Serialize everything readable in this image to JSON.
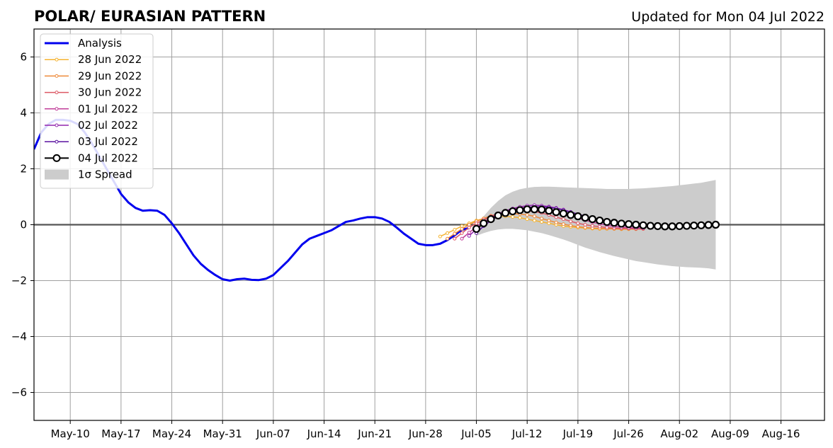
{
  "header": {
    "title": "POLAR/ EURASIAN  PATTERN",
    "updated": "Updated for Mon 04 Jul 2022"
  },
  "chart_data": {
    "type": "line",
    "x_axis": {
      "ticks": [
        "2022-05-10",
        "2022-05-17",
        "2022-05-24",
        "2022-05-31",
        "2022-06-07",
        "2022-06-14",
        "2022-06-21",
        "2022-06-28",
        "2022-07-05",
        "2022-07-12",
        "2022-07-19",
        "2022-07-26",
        "2022-08-02",
        "2022-08-09",
        "2022-08-16"
      ],
      "tick_labels": [
        "May-10",
        "May-17",
        "May-24",
        "May-31",
        "Jun-07",
        "Jun-14",
        "Jun-21",
        "Jun-28",
        "Jul-05",
        "Jul-12",
        "Jul-19",
        "Jul-26",
        "Aug-02",
        "Aug-09",
        "Aug-16"
      ],
      "range": [
        "2022-05-05",
        "2022-08-22"
      ]
    },
    "y_axis": {
      "ticks": [
        -6,
        -4,
        -2,
        0,
        2,
        4,
        6
      ],
      "tick_labels": [
        "−6",
        "−4",
        "−2",
        "0",
        "2",
        "4",
        "6"
      ],
      "ylim": [
        -7,
        7
      ]
    },
    "grid": true,
    "legend_position": "top-left",
    "zero_line": true,
    "analysis": {
      "name": "Analysis",
      "color": "#0000ee",
      "x": [
        "2022-05-05",
        "2022-05-06",
        "2022-05-07",
        "2022-05-08",
        "2022-05-09",
        "2022-05-10",
        "2022-05-11",
        "2022-05-12",
        "2022-05-13",
        "2022-05-14",
        "2022-05-15",
        "2022-05-16",
        "2022-05-17",
        "2022-05-18",
        "2022-05-19",
        "2022-05-20",
        "2022-05-21",
        "2022-05-22",
        "2022-05-23",
        "2022-05-24",
        "2022-05-25",
        "2022-05-26",
        "2022-05-27",
        "2022-05-28",
        "2022-05-29",
        "2022-05-30",
        "2022-05-31",
        "2022-06-01",
        "2022-06-02",
        "2022-06-03",
        "2022-06-04",
        "2022-06-05",
        "2022-06-06",
        "2022-06-07",
        "2022-06-08",
        "2022-06-09",
        "2022-06-10",
        "2022-06-11",
        "2022-06-12",
        "2022-06-13",
        "2022-06-14",
        "2022-06-15",
        "2022-06-16",
        "2022-06-17",
        "2022-06-18",
        "2022-06-19",
        "2022-06-20",
        "2022-06-21",
        "2022-06-22",
        "2022-06-23",
        "2022-06-24",
        "2022-06-25",
        "2022-06-26",
        "2022-06-27",
        "2022-06-28",
        "2022-06-29",
        "2022-06-30",
        "2022-07-01",
        "2022-07-02",
        "2022-07-03",
        "2022-07-04"
      ],
      "y": [
        2.7,
        3.3,
        3.6,
        3.75,
        3.75,
        3.72,
        3.6,
        3.3,
        2.9,
        2.45,
        2.0,
        1.55,
        1.1,
        0.8,
        0.6,
        0.5,
        0.52,
        0.5,
        0.35,
        0.05,
        -0.3,
        -0.7,
        -1.1,
        -1.4,
        -1.62,
        -1.8,
        -1.95,
        -2.0,
        -1.95,
        -1.93,
        -1.97,
        -1.98,
        -1.93,
        -1.8,
        -1.55,
        -1.3,
        -1.0,
        -0.7,
        -0.5,
        -0.4,
        -0.3,
        -0.2,
        -0.05,
        0.1,
        0.15,
        0.22,
        0.27,
        0.27,
        0.22,
        0.1,
        -0.1,
        -0.32,
        -0.5,
        -0.68,
        -0.73,
        -0.73,
        -0.68,
        -0.55,
        -0.38,
        -0.18,
        -0.12
      ]
    },
    "forecasts": [
      {
        "name": "28 Jun 2022",
        "color": "#f5b330",
        "start": "2022-06-30",
        "y": [
          -0.42,
          -0.3,
          -0.18,
          -0.05,
          0.05,
          0.15,
          0.22,
          0.28,
          0.3,
          0.3,
          0.28,
          0.25,
          0.2,
          0.15,
          0.1,
          0.05,
          0.0,
          -0.05,
          -0.08,
          -0.1,
          -0.12,
          -0.14,
          -0.15,
          -0.15,
          -0.15,
          -0.16,
          -0.16,
          -0.16,
          -0.15
        ]
      },
      {
        "name": "29 Jun 2022",
        "color": "#ee8a3a",
        "start": "2022-07-01",
        "y": [
          -0.5,
          -0.32,
          -0.15,
          0.0,
          0.12,
          0.22,
          0.32,
          0.38,
          0.4,
          0.4,
          0.38,
          0.35,
          0.3,
          0.22,
          0.15,
          0.08,
          0.02,
          -0.03,
          -0.07,
          -0.1,
          -0.12,
          -0.13,
          -0.14,
          -0.15,
          -0.15,
          -0.15,
          -0.15,
          -0.15
        ]
      },
      {
        "name": "30 Jun 2022",
        "color": "#dc5864",
        "start": "2022-07-02",
        "y": [
          -0.5,
          -0.3,
          -0.1,
          0.05,
          0.18,
          0.3,
          0.4,
          0.47,
          0.5,
          0.52,
          0.5,
          0.47,
          0.42,
          0.35,
          0.27,
          0.2,
          0.12,
          0.05,
          0.0,
          -0.04,
          -0.07,
          -0.1,
          -0.12,
          -0.13,
          -0.14,
          -0.15,
          -0.15
        ]
      },
      {
        "name": "01 Jul 2022",
        "color": "#c13e9a",
        "start": "2022-07-03",
        "y": [
          -0.5,
          -0.28,
          -0.08,
          0.1,
          0.25,
          0.38,
          0.48,
          0.55,
          0.6,
          0.62,
          0.62,
          0.6,
          0.55,
          0.48,
          0.4,
          0.32,
          0.24,
          0.16,
          0.09,
          0.03,
          -0.02,
          -0.06,
          -0.09,
          -0.11,
          -0.12,
          -0.13
        ]
      },
      {
        "name": "02 Jul 2022",
        "color": "#9226ad",
        "start": "2022-07-04",
        "y": [
          -0.4,
          -0.15,
          0.05,
          0.22,
          0.38,
          0.5,
          0.58,
          0.64,
          0.68,
          0.7,
          0.68,
          0.65,
          0.6,
          0.54,
          0.46,
          0.38,
          0.3,
          0.22,
          0.15,
          0.08,
          0.03,
          -0.01,
          -0.04,
          -0.07,
          -0.09
        ]
      },
      {
        "name": "03 Jul 2022",
        "color": "#5a12a0",
        "start": "2022-07-05",
        "y": [
          -0.3,
          -0.05,
          0.15,
          0.3,
          0.42,
          0.52,
          0.58,
          0.62,
          0.64,
          0.64,
          0.62,
          0.58,
          0.52,
          0.45,
          0.38,
          0.3,
          0.22,
          0.15,
          0.1,
          0.05,
          0.01,
          -0.02,
          -0.04,
          -0.06
        ]
      },
      {
        "name": "04 Jul 2022",
        "color": "#000000",
        "marker": "open-circle-large",
        "start": "2022-07-05",
        "y": [
          -0.15,
          0.05,
          0.2,
          0.33,
          0.42,
          0.48,
          0.52,
          0.55,
          0.55,
          0.54,
          0.5,
          0.45,
          0.4,
          0.35,
          0.3,
          0.25,
          0.2,
          0.15,
          0.1,
          0.07,
          0.04,
          0.02,
          0.0,
          -0.02,
          -0.04,
          -0.05,
          -0.06,
          -0.06,
          -0.05,
          -0.04,
          -0.03,
          -0.02,
          -0.01,
          0.0
        ]
      }
    ],
    "spread": {
      "name": "1σ Spread",
      "color": "#cccccc",
      "x_start": "2022-07-05",
      "x_end": "2022-08-06",
      "upper": [
        -0.1,
        0.3,
        0.6,
        0.85,
        1.05,
        1.18,
        1.27,
        1.32,
        1.35,
        1.36,
        1.36,
        1.35,
        1.34,
        1.33,
        1.32,
        1.31,
        1.3,
        1.29,
        1.28,
        1.28,
        1.28,
        1.28,
        1.29,
        1.3,
        1.32,
        1.34,
        1.36,
        1.38,
        1.41,
        1.44,
        1.47,
        1.5,
        1.55,
        1.6
      ],
      "lower": [
        -0.4,
        -0.3,
        -0.22,
        -0.17,
        -0.15,
        -0.15,
        -0.17,
        -0.2,
        -0.25,
        -0.3,
        -0.37,
        -0.45,
        -0.53,
        -0.62,
        -0.72,
        -0.82,
        -0.9,
        -0.98,
        -1.05,
        -1.12,
        -1.18,
        -1.24,
        -1.3,
        -1.34,
        -1.38,
        -1.42,
        -1.45,
        -1.48,
        -1.5,
        -1.52,
        -1.53,
        -1.54,
        -1.56,
        -1.6
      ]
    },
    "legend": [
      {
        "label": "Analysis"
      },
      {
        "label": "28 Jun 2022"
      },
      {
        "label": "29 Jun 2022"
      },
      {
        "label": "30 Jun 2022"
      },
      {
        "label": "01 Jul 2022"
      },
      {
        "label": "02 Jul 2022"
      },
      {
        "label": "03 Jul 2022"
      },
      {
        "label": "04 Jul 2022"
      },
      {
        "label": "1σ Spread"
      }
    ]
  }
}
